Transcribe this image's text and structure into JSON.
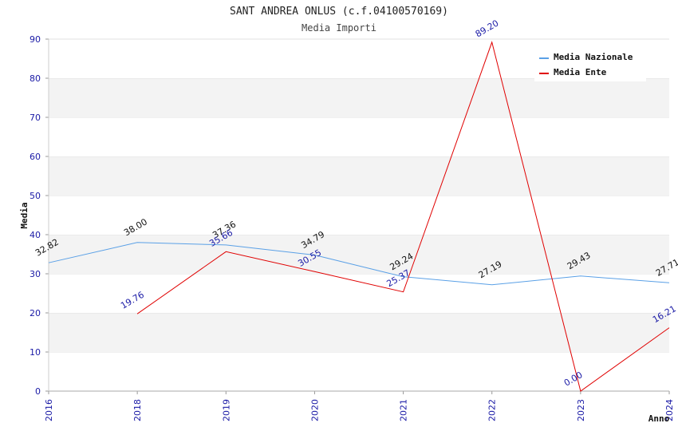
{
  "chart_data": {
    "type": "line",
    "title": "SANT ANDREA ONLUS (c.f.04100570169)",
    "subtitle": "Media Importi",
    "xlabel": "Anno",
    "ylabel": "Media",
    "ylim": [
      0,
      90
    ],
    "yticks": [
      "0",
      "10",
      "20",
      "30",
      "40",
      "50",
      "60",
      "70",
      "80",
      "90"
    ],
    "x": [
      "2016",
      "2018",
      "2019",
      "2020",
      "2021",
      "2022",
      "2023",
      "2024"
    ],
    "grid": "horizontal-bands",
    "legend_position": "top-right",
    "series": [
      {
        "name": "Media Nazionale",
        "color": "#5aa0e6",
        "values": [
          32.82,
          38.0,
          37.36,
          34.79,
          29.24,
          27.19,
          29.43,
          27.71
        ],
        "labels": [
          "32.82",
          "38.00",
          "37.36",
          "34.79",
          "29.24",
          "27.19",
          "29.43",
          "27.71"
        ]
      },
      {
        "name": "Media Ente",
        "color": "#e00000",
        "values": [
          null,
          19.76,
          35.66,
          30.55,
          25.37,
          89.2,
          0.0,
          16.21
        ],
        "labels": [
          "",
          "19.76",
          "35.66",
          "30.55",
          "25.37",
          "89.20",
          "0.00",
          "16.21"
        ]
      }
    ]
  }
}
